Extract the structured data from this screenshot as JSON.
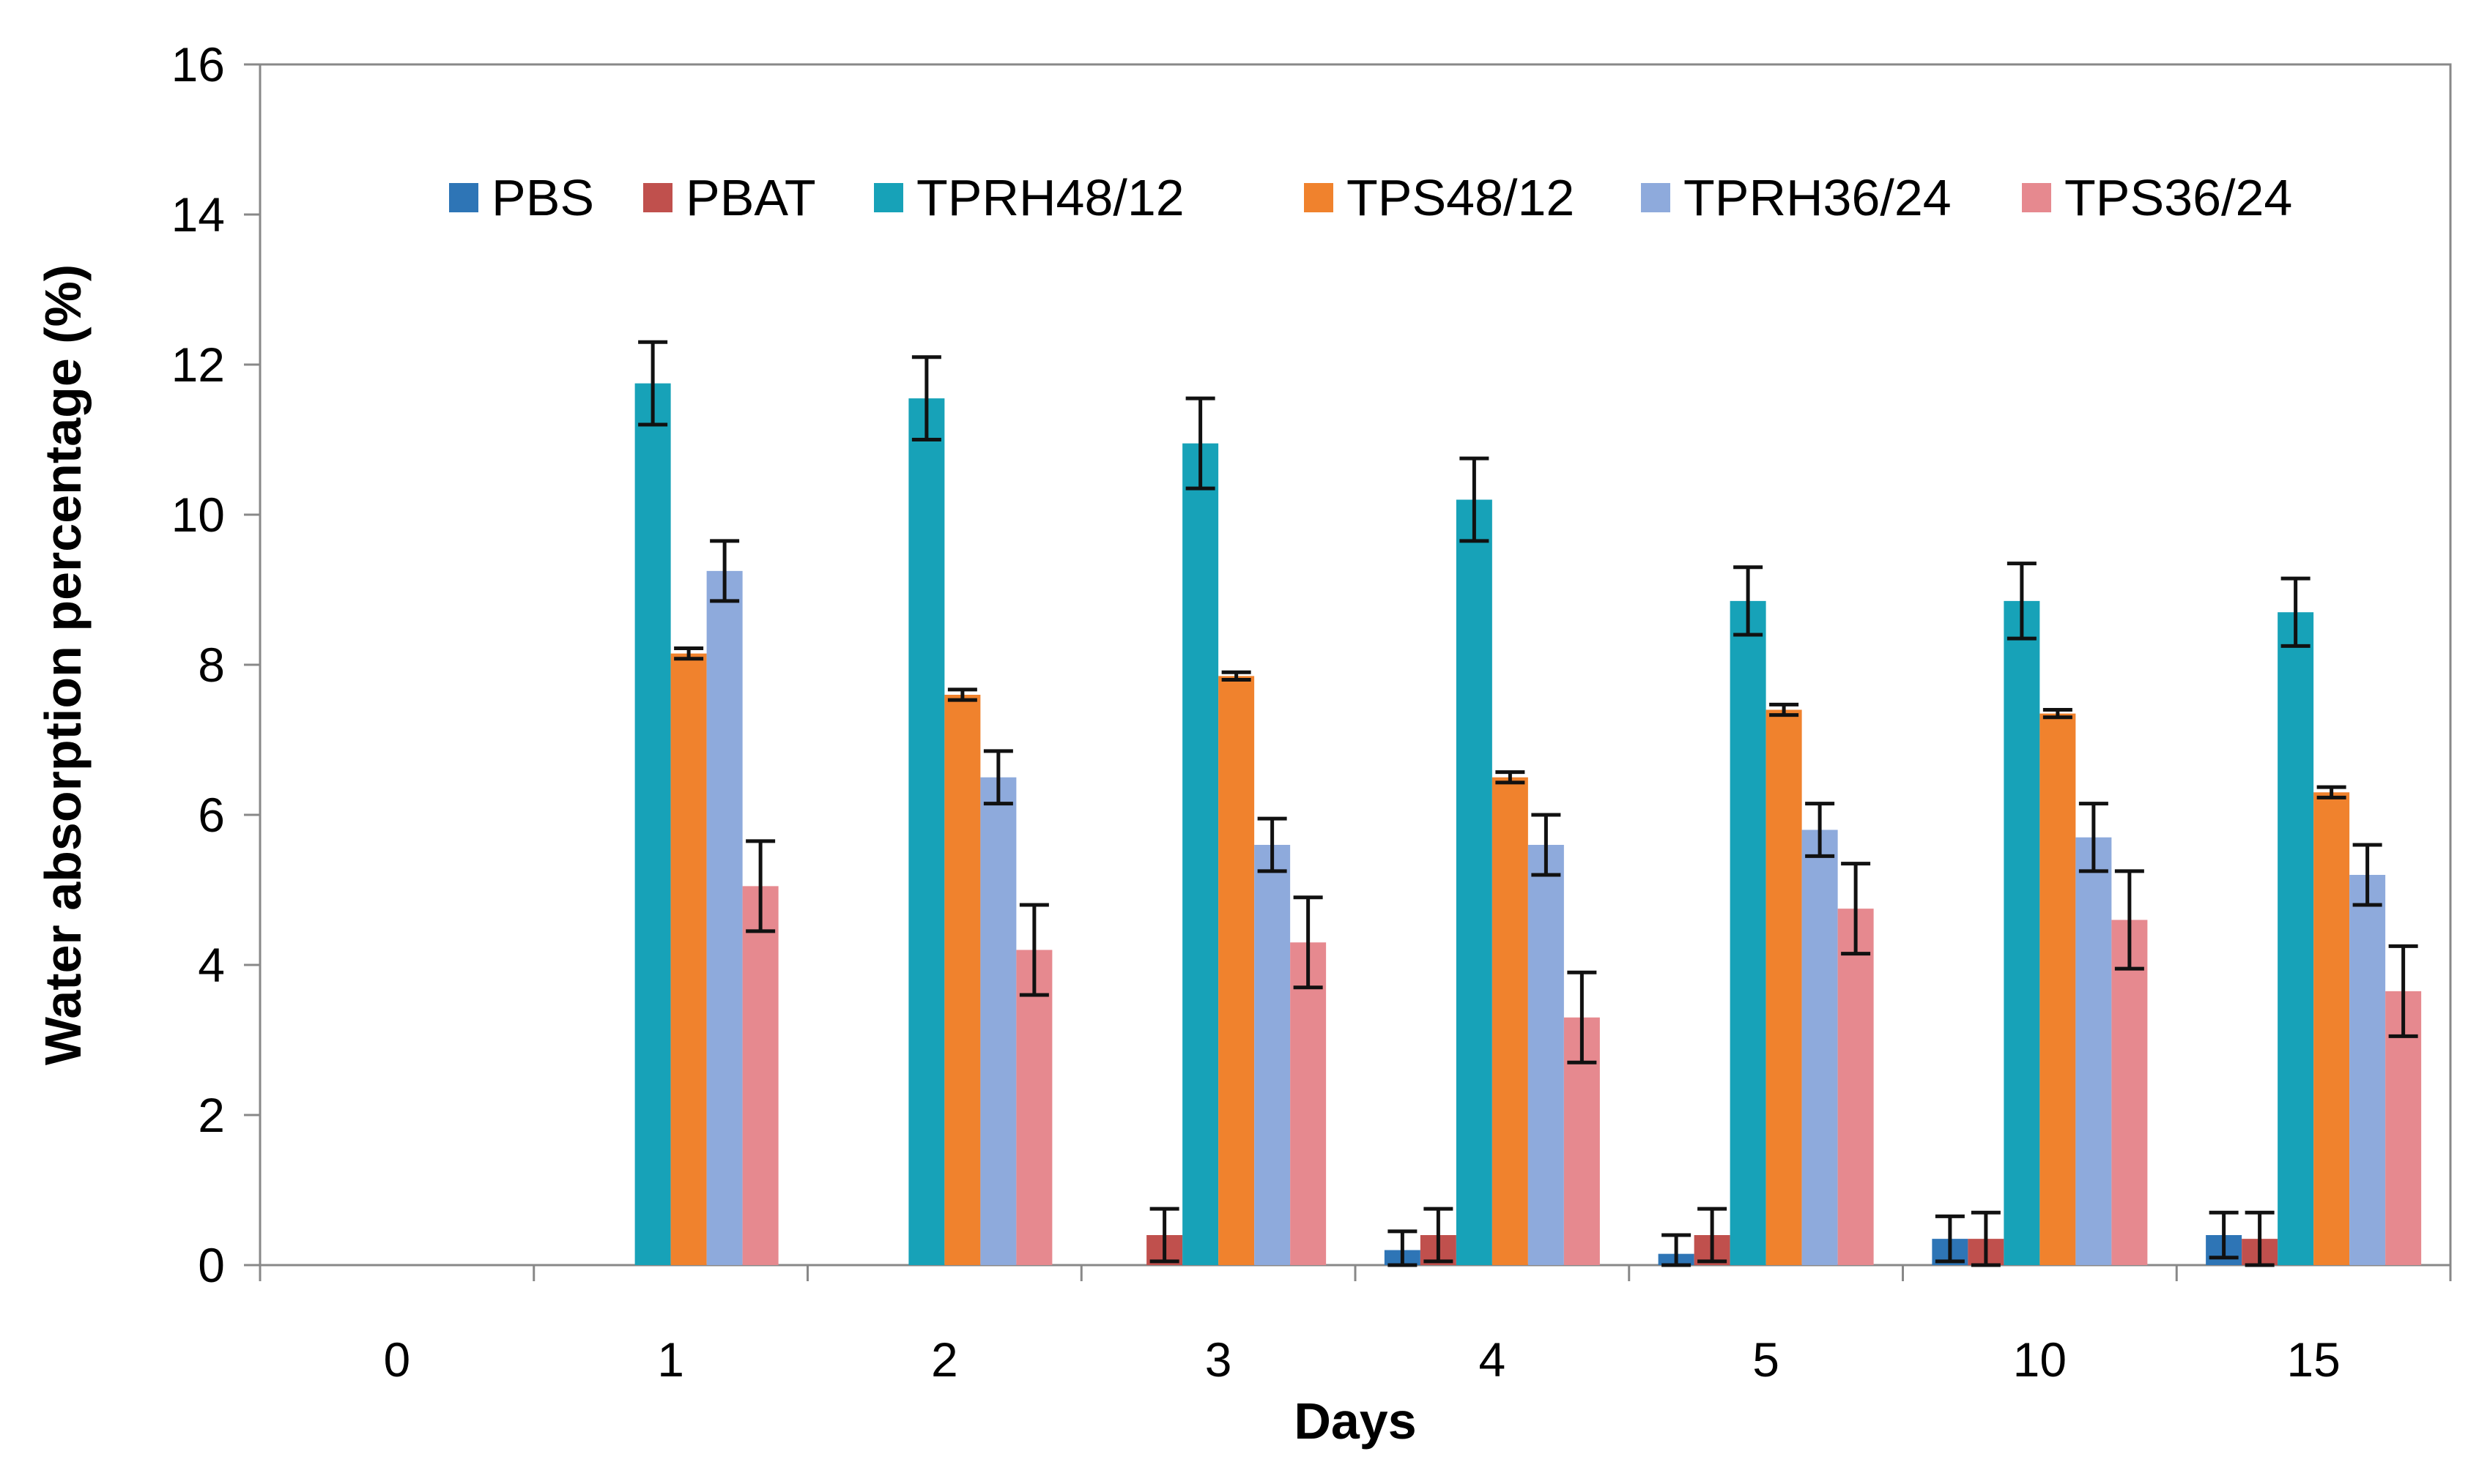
{
  "chart_data": {
    "type": "bar",
    "title": "",
    "xlabel": "Days",
    "ylabel": "Water absorption percentage (%)",
    "ylim": [
      0,
      16
    ],
    "yticks": [
      0,
      2,
      4,
      6,
      8,
      10,
      12,
      14,
      16
    ],
    "categories": [
      "0",
      "1",
      "2",
      "3",
      "4",
      "5",
      "10",
      "15"
    ],
    "grid": false,
    "legend_position": "top",
    "series": [
      {
        "name": "PBS",
        "color": "#2E75B6",
        "values": [
          0,
          0,
          0,
          0,
          0.2,
          0.15,
          0.35,
          0.4
        ],
        "errors": [
          0,
          0,
          0,
          0,
          0.25,
          0.25,
          0.3,
          0.3
        ]
      },
      {
        "name": "PBAT",
        "color": "#C0504D",
        "values": [
          0,
          0,
          0,
          0.4,
          0.4,
          0.4,
          0.35,
          0.35
        ],
        "errors": [
          0,
          0,
          0,
          0.35,
          0.35,
          0.35,
          0.35,
          0.35
        ]
      },
      {
        "name": "TPRH48/12",
        "color": "#17A2B8",
        "values": [
          0,
          11.75,
          11.55,
          10.95,
          10.2,
          8.85,
          8.85,
          8.7
        ],
        "errors": [
          0,
          0.55,
          0.55,
          0.6,
          0.55,
          0.45,
          0.5,
          0.45
        ]
      },
      {
        "name": "TPS48/12",
        "color": "#F0822D",
        "values": [
          0,
          8.15,
          7.6,
          7.85,
          6.5,
          7.4,
          7.35,
          6.3
        ],
        "errors": [
          0,
          0.07,
          0.07,
          0.05,
          0.07,
          0.07,
          0.05,
          0.07
        ]
      },
      {
        "name": "TPRH36/24",
        "color": "#8EAADC",
        "values": [
          0,
          9.25,
          6.5,
          5.6,
          5.6,
          5.8,
          5.7,
          5.2
        ],
        "errors": [
          0,
          0.4,
          0.35,
          0.35,
          0.4,
          0.35,
          0.45,
          0.4
        ]
      },
      {
        "name": "TPS36/24",
        "color": "#E6898F",
        "values": [
          0,
          5.05,
          4.2,
          4.3,
          3.3,
          4.75,
          4.6,
          3.65
        ],
        "errors": [
          0,
          0.6,
          0.6,
          0.6,
          0.6,
          0.6,
          0.65,
          0.6
        ]
      }
    ]
  }
}
